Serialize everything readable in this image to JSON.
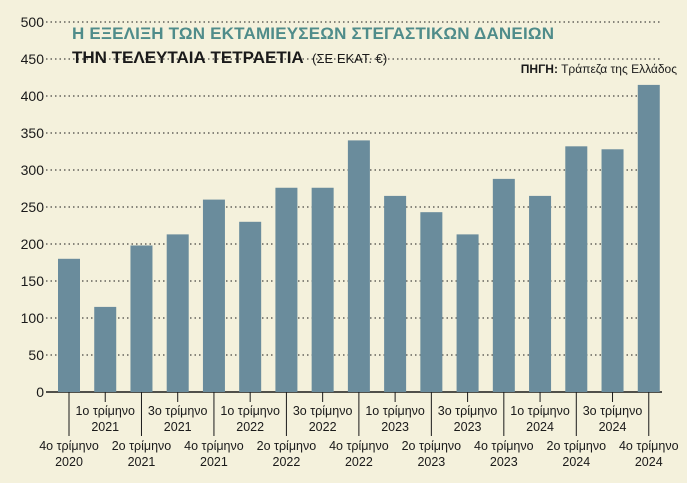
{
  "chart_data": {
    "type": "bar",
    "title": "Η ΕΞΕΛΙΞΗ ΤΩΝ ΕΚΤΑΜΙΕΥΣΕΩΝ ΣΤΕΓΑΣΤΙΚΩΝ ΔΑΝΕΙΩΝ",
    "subtitle": "ΤΗΝ ΤΕΛΕΥΤΑΙΑ ΤΕΤΡΑΕΤΙΑ",
    "unit": "(ΣΕ ΕΚΑΤ. €)",
    "source_label": "ΠΗΓΗ:",
    "source_text": "Τράπεζα της Ελλάδος",
    "ylim": [
      0,
      500
    ],
    "yticks": [
      0,
      50,
      100,
      150,
      200,
      250,
      300,
      350,
      400,
      450,
      500
    ],
    "categories": [
      [
        "4ο τρίμηνο",
        "2020"
      ],
      [
        "1ο τρίμηνο",
        "2021"
      ],
      [
        "2ο τρίμηνο",
        "2021"
      ],
      [
        "3ο τρίμηνο",
        "2021"
      ],
      [
        "4ο τρίμηνο",
        "2021"
      ],
      [
        "1ο τρίμηνο",
        "2022"
      ],
      [
        "2ο τρίμηνο",
        "2022"
      ],
      [
        "3ο τρίμηνο",
        "2022"
      ],
      [
        "4ο τρίμηνο",
        "2022"
      ],
      [
        "1ο τρίμηνο",
        "2023"
      ],
      [
        "2ο τρίμηνο",
        "2023"
      ],
      [
        "3ο τρίμηνο",
        "2023"
      ],
      [
        "4ο τρίμηνο",
        "2023"
      ],
      [
        "1ο τρίμηνο",
        "2024"
      ],
      [
        "2ο τρίμηνο",
        "2024"
      ],
      [
        "3ο τρίμηνο",
        "2024"
      ],
      [
        "4ο τρίμηνο",
        "2024"
      ]
    ],
    "values": [
      180,
      115,
      198,
      213,
      260,
      230,
      276,
      276,
      340,
      265,
      243,
      213,
      288,
      265,
      332,
      328,
      415
    ],
    "colors": {
      "bar": "#6a8c9c",
      "grid": "#1a1a1a",
      "background": "#f4f1dc",
      "title": "#4f8c8a"
    }
  }
}
